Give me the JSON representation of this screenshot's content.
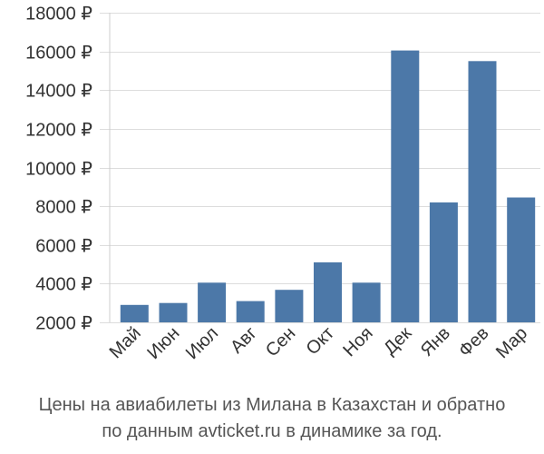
{
  "chart_data": {
    "type": "bar",
    "categories": [
      "Май",
      "Июн",
      "Июл",
      "Авг",
      "Сен",
      "Окт",
      "Ноя",
      "Дек",
      "Янв",
      "Фев",
      "Мар"
    ],
    "values": [
      2900,
      3000,
      4050,
      3100,
      3680,
      5100,
      4050,
      16050,
      8200,
      15500,
      8450
    ],
    "ylim": [
      2000,
      18000
    ],
    "yticks": [
      2000,
      4000,
      6000,
      8000,
      10000,
      12000,
      14000,
      16000,
      18000
    ],
    "ytick_labels": [
      "2000 ₽",
      "4000 ₽",
      "6000 ₽",
      "8000 ₽",
      "10000 ₽",
      "12000 ₽",
      "14000 ₽",
      "16000 ₽",
      "18000 ₽"
    ],
    "grid": true,
    "bar_color": "#4c78a8",
    "grid_color": "#dddddd"
  },
  "caption": {
    "line1": "Цены на авиабилеты из Милана в Казахстан и обратно",
    "line2": "по данным avticket.ru в динамике за год."
  }
}
